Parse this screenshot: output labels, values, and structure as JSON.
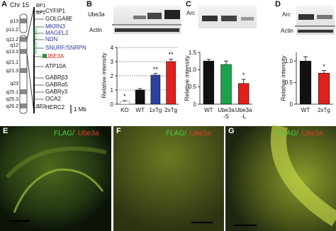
{
  "panel_letters": [
    "A",
    "B",
    "C",
    "D",
    "E",
    "F",
    "G"
  ],
  "panel_a": {
    "chromosome": "Chr 15",
    "bands": [
      "p13",
      "p11.2",
      "q11.2",
      "q12",
      "q13.3",
      "q21.1",
      "q21.3",
      "q23",
      "q25.1",
      "q25.3",
      "q26.2"
    ],
    "breakpoints": [
      "BP1",
      "BP2",
      "BP3"
    ],
    "genes": [
      {
        "label": "CYFIP1",
        "color": "#111111"
      },
      {
        "label": "GOLGA8E",
        "color": "#111111"
      },
      {
        "label": "MKRN3",
        "color": "#2b3a9a"
      },
      {
        "label": "MAGEL2",
        "color": "#2b3a9a"
      },
      {
        "label": "NDN",
        "color": "#2b3a9a"
      },
      {
        "label": "SNURF/SNRPN",
        "color": "#2b3a9a"
      },
      {
        "label": "UBE3A",
        "color": "#e0201b"
      },
      {
        "label": "ATP10A",
        "color": "#111111"
      },
      {
        "label": "GABRβ3",
        "color": "#111111"
      },
      {
        "label": "GABRα5",
        "color": "#111111"
      },
      {
        "label": "GABRγ3",
        "color": "#111111"
      },
      {
        "label": "OCA2",
        "color": "#111111"
      },
      {
        "label": "HERC2",
        "color": "#111111"
      }
    ],
    "bac": "RP24-178G7",
    "bac_color": "#1aa34a",
    "scale_bar": "1 Mb"
  },
  "blots": {
    "b": [
      "Ube3a",
      "Actin"
    ],
    "c": [
      "Arc"
    ],
    "d": [
      "Arc",
      "Actin"
    ]
  },
  "micrographs": [
    [
      "FLAG/",
      "Ube3a"
    ],
    [
      "FLAG/",
      "Ube3a"
    ],
    [
      "FLAG/",
      "Ube3a"
    ]
  ],
  "chart_data": [
    {
      "type": "bar",
      "y_label": "Relative intensity",
      "categories": [
        "KO",
        "WT",
        "1xTg",
        "2xTg"
      ],
      "values": [
        0.2,
        1.0,
        2.05,
        3.0
      ],
      "errors": [
        0.05,
        0.1,
        0.12,
        0.18
      ],
      "colors": [
        "#ffffff",
        "#111111",
        "#2a3f9f",
        "#e0201b"
      ],
      "annotations": [
        "*",
        null,
        "**",
        "**"
      ],
      "ylim": [
        0,
        4
      ],
      "yticks": [
        0,
        1,
        2,
        3,
        4
      ],
      "grid": true
    },
    {
      "type": "bar",
      "y_label": "Relative intensity",
      "categories": [
        "WT",
        "Ube3a\n-S",
        "Ube3a\n-L"
      ],
      "values": [
        1.25,
        1.15,
        0.6
      ],
      "errors": [
        0.05,
        0.1,
        0.12
      ],
      "colors": [
        "#111111",
        "#1aa34a",
        "#e0201b"
      ],
      "annotations": [
        null,
        null,
        "*"
      ],
      "ylim": [
        0,
        1.5
      ],
      "yticks": [
        0,
        0.5,
        {
          "value": 1,
          "label": "1.0"
        },
        1.5
      ],
      "grid": false
    },
    {
      "type": "bar",
      "y_label": "Relative intensity",
      "categories": [
        "WT",
        "2xTg"
      ],
      "values": [
        1.0,
        0.72
      ],
      "errors": [
        0.1,
        0.06
      ],
      "colors": [
        "#111111",
        "#e0201b"
      ],
      "annotations": [
        null,
        "*"
      ],
      "ylim": [
        0,
        1.2
      ],
      "yticks": [
        0,
        0.5,
        {
          "value": 1,
          "label": "1.0"
        }
      ],
      "grid": false
    }
  ]
}
